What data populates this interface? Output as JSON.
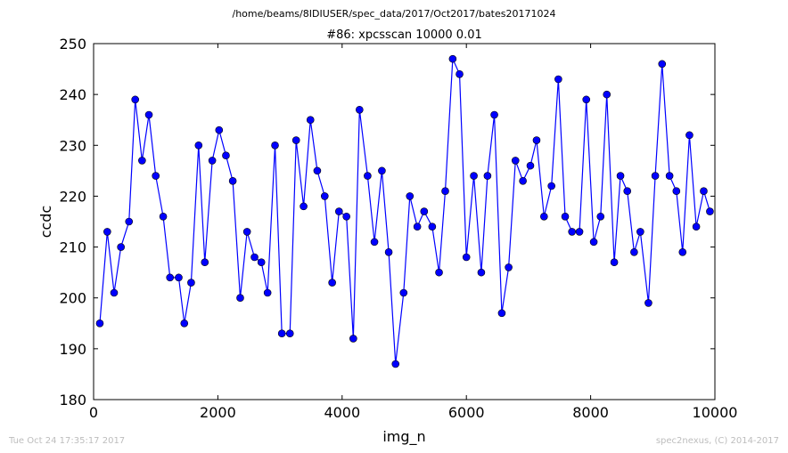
{
  "header": {
    "path": "/home/beams/8IDIUSER/spec_data/2017/Oct2017/bates20171024"
  },
  "footer": {
    "timestamp": "Tue Oct 24 17:35:17 2017",
    "credit": "spec2nexus, (C) 2014-2017"
  },
  "chart_data": {
    "type": "line",
    "title": "#86: xpcsscan 10000 0.01",
    "xlabel": "img_n",
    "ylabel": "ccdc",
    "xlim": [
      0,
      10000
    ],
    "ylim": [
      180,
      250
    ],
    "xticks": [
      0,
      2000,
      4000,
      6000,
      8000,
      10000
    ],
    "yticks": [
      180,
      190,
      200,
      210,
      220,
      230,
      240,
      250
    ],
    "grid": false,
    "color": "#0000ff",
    "marker": "circle",
    "series": [
      {
        "x": [
          100,
          220,
          330,
          440,
          570,
          670,
          780,
          890,
          1000,
          1120,
          1230,
          1370,
          1460,
          1570,
          1690,
          1790,
          1910,
          2020,
          2130,
          2240,
          2360,
          2470,
          2590,
          2700,
          2800,
          2920,
          3030,
          3160,
          3260,
          3380,
          3490,
          3600,
          3720,
          3840,
          3950,
          4070,
          4180,
          4280,
          4410,
          4520,
          4640,
          4750,
          4860,
          4990,
          5090,
          5210,
          5320,
          5450,
          5560,
          5660,
          5780,
          5890,
          6000,
          6120,
          6240,
          6340,
          6450,
          6570,
          6680,
          6790,
          6910,
          7030,
          7130,
          7250,
          7370,
          7480,
          7590,
          7700,
          7820,
          7930,
          8050,
          8160,
          8260,
          8380,
          8480,
          8590,
          8700,
          8800,
          8930,
          9040,
          9150,
          9270,
          9380,
          9480,
          9590,
          9700,
          9820,
          9920
        ],
        "y": [
          195,
          213,
          201,
          210,
          215,
          239,
          227,
          236,
          224,
          216,
          204,
          204,
          195,
          203,
          230,
          207,
          227,
          233,
          228,
          223,
          200,
          213,
          208,
          207,
          201,
          230,
          193,
          193,
          231,
          218,
          235,
          225,
          220,
          203,
          217,
          216,
          192,
          237,
          224,
          211,
          225,
          209,
          187,
          201,
          220,
          214,
          217,
          214,
          205,
          221,
          247,
          244,
          208,
          224,
          205,
          224,
          236,
          197,
          206,
          227,
          223,
          226,
          231,
          216,
          222,
          243,
          216,
          213,
          213,
          239,
          211,
          216,
          240,
          207,
          224,
          221,
          209,
          213,
          199,
          224,
          246,
          224,
          221,
          209,
          232,
          214,
          221,
          217
        ]
      }
    ]
  }
}
